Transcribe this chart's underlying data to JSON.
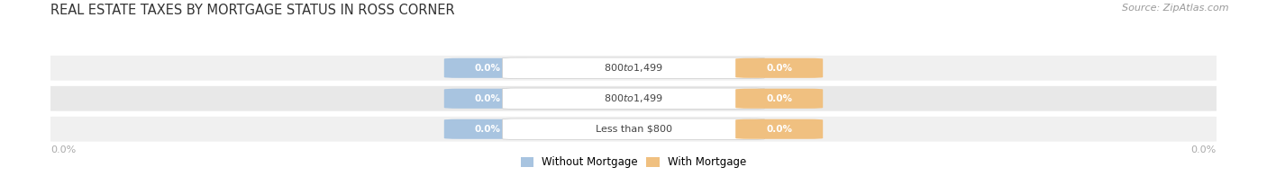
{
  "title": "REAL ESTATE TAXES BY MORTGAGE STATUS IN ROSS CORNER",
  "source": "Source: ZipAtlas.com",
  "categories": [
    "Less than $800",
    "$800 to $1,499",
    "$800 to $1,499"
  ],
  "without_mortgage_values": [
    0.0,
    0.0,
    0.0
  ],
  "with_mortgage_values": [
    0.0,
    0.0,
    0.0
  ],
  "without_mortgage_label": "Without Mortgage",
  "with_mortgage_label": "With Mortgage",
  "without_mortgage_color": "#a8c4e0",
  "with_mortgage_color": "#f0c080",
  "row_bg_colors": [
    "#f0f0f0",
    "#e8e8e8",
    "#f0f0f0"
  ],
  "bar_bg_color": "#e2e2e2",
  "center_label_color": "#444444",
  "axis_label_color": "#aaaaaa",
  "title_color": "#333333",
  "source_color": "#999999",
  "title_fontsize": 10.5,
  "source_fontsize": 8,
  "tick_fontsize": 8,
  "figsize": [
    14.06,
    1.96
  ],
  "dpi": 100,
  "xlim": [
    -1.0,
    1.0
  ],
  "x_left_label": "0.0%",
  "x_right_label": "0.0%"
}
